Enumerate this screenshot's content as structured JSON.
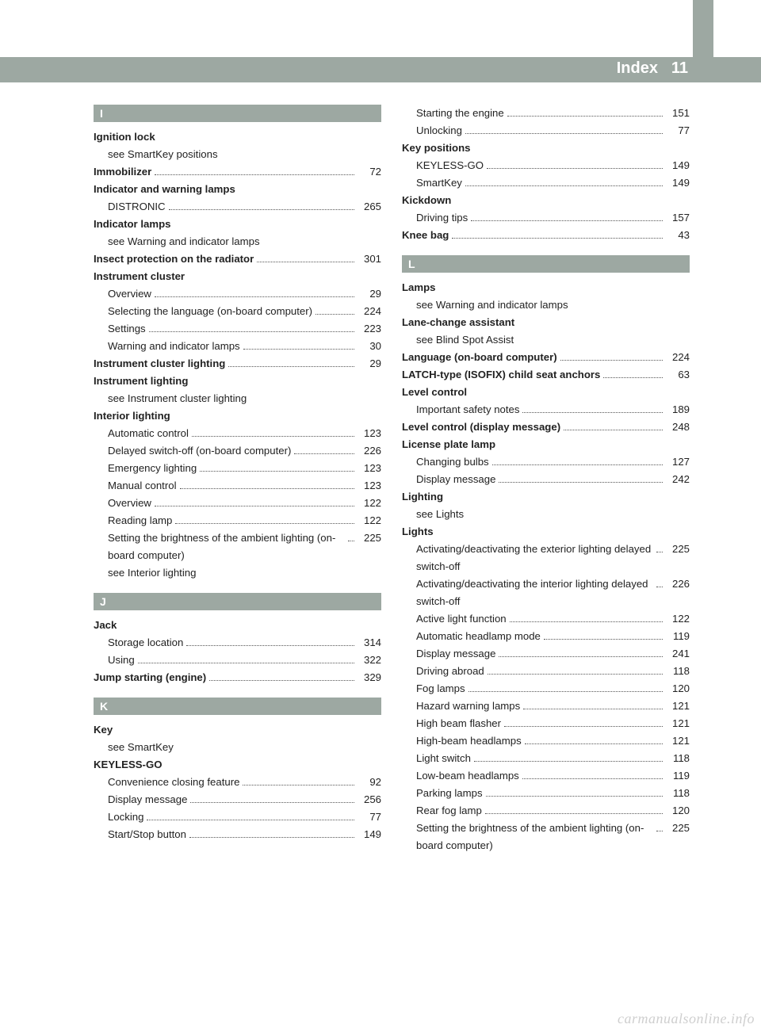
{
  "header": {
    "title": "Index",
    "page": "11"
  },
  "watermark": "carmanualsonline.info",
  "columns": [
    {
      "groups": [
        {
          "letter": "I",
          "items": [
            {
              "type": "head",
              "label": "Ignition lock"
            },
            {
              "type": "sub",
              "label": "see SmartKey positions"
            },
            {
              "type": "boldrow",
              "label": "Immobilizer",
              "page": "72"
            },
            {
              "type": "head",
              "label": "Indicator and warning lamps"
            },
            {
              "type": "subrow",
              "label": "DISTRONIC",
              "page": "265"
            },
            {
              "type": "head",
              "label": "Indicator lamps"
            },
            {
              "type": "sub",
              "label": "see Warning and indicator lamps"
            },
            {
              "type": "boldrow",
              "label": "Insect protection on the radiator",
              "page": "301"
            },
            {
              "type": "head",
              "label": "Instrument cluster"
            },
            {
              "type": "subrow",
              "label": "Overview",
              "page": "29"
            },
            {
              "type": "subrow",
              "label": "Selecting the language (on-board computer)",
              "page": "224"
            },
            {
              "type": "subrow",
              "label": "Settings",
              "page": "223"
            },
            {
              "type": "subrow",
              "label": "Warning and indicator lamps",
              "page": "30"
            },
            {
              "type": "boldrow",
              "label": "Instrument cluster lighting",
              "page": "29"
            },
            {
              "type": "head",
              "label": "Instrument lighting"
            },
            {
              "type": "sub",
              "label": "see Instrument cluster lighting"
            },
            {
              "type": "head",
              "label": "Interior lighting"
            },
            {
              "type": "subrow",
              "label": "Automatic control",
              "page": "123"
            },
            {
              "type": "subrow",
              "label": "Delayed switch-off (on-board computer)",
              "page": "226"
            },
            {
              "type": "subrow",
              "label": "Emergency lighting",
              "page": "123"
            },
            {
              "type": "subrow",
              "label": "Manual control",
              "page": "123"
            },
            {
              "type": "subrow",
              "label": "Overview",
              "page": "122"
            },
            {
              "type": "subrow",
              "label": "Reading lamp",
              "page": "122"
            },
            {
              "type": "subrow",
              "label": "Setting the brightness of the ambient lighting (on-board computer)",
              "page": "225"
            },
            {
              "type": "sub",
              "label": "see Interior lighting"
            }
          ]
        },
        {
          "letter": "J",
          "items": [
            {
              "type": "head",
              "label": "Jack"
            },
            {
              "type": "subrow",
              "label": "Storage location",
              "page": "314"
            },
            {
              "type": "subrow",
              "label": "Using",
              "page": "322"
            },
            {
              "type": "boldrow",
              "label": "Jump starting (engine)",
              "page": "329"
            }
          ]
        },
        {
          "letter": "K",
          "items": [
            {
              "type": "head",
              "label": "Key"
            },
            {
              "type": "sub",
              "label": "see SmartKey"
            },
            {
              "type": "head",
              "label": "KEYLESS-GO"
            },
            {
              "type": "subrow",
              "label": "Convenience closing feature",
              "page": "92"
            },
            {
              "type": "subrow",
              "label": "Display message",
              "page": "256"
            },
            {
              "type": "subrow",
              "label": "Locking",
              "page": "77"
            },
            {
              "type": "subrow",
              "label": "Start/Stop button",
              "page": "149"
            }
          ]
        }
      ]
    },
    {
      "groups": [
        {
          "letter": null,
          "items": [
            {
              "type": "subrow",
              "label": "Starting the engine",
              "page": "151"
            },
            {
              "type": "subrow",
              "label": "Unlocking",
              "page": "77"
            },
            {
              "type": "head",
              "label": "Key positions"
            },
            {
              "type": "subrow",
              "label": "KEYLESS-GO",
              "page": "149"
            },
            {
              "type": "subrow",
              "label": "SmartKey",
              "page": "149"
            },
            {
              "type": "head",
              "label": "Kickdown"
            },
            {
              "type": "subrow",
              "label": "Driving tips",
              "page": "157"
            },
            {
              "type": "boldrow",
              "label": "Knee bag",
              "page": "43"
            }
          ]
        },
        {
          "letter": "L",
          "items": [
            {
              "type": "head",
              "label": "Lamps"
            },
            {
              "type": "sub",
              "label": "see Warning and indicator lamps"
            },
            {
              "type": "head",
              "label": "Lane-change assistant"
            },
            {
              "type": "sub",
              "label": "see Blind Spot Assist"
            },
            {
              "type": "boldrow",
              "label": "Language (on-board computer)",
              "page": "224"
            },
            {
              "type": "boldrow",
              "label": "LATCH-type (ISOFIX) child seat anchors",
              "page": "63"
            },
            {
              "type": "head",
              "label": "Level control"
            },
            {
              "type": "subrow",
              "label": "Important safety notes",
              "page": "189"
            },
            {
              "type": "boldrow",
              "label": "Level control (display message)",
              "page": "248"
            },
            {
              "type": "head",
              "label": "License plate lamp"
            },
            {
              "type": "subrow",
              "label": "Changing bulbs",
              "page": "127"
            },
            {
              "type": "subrow",
              "label": "Display message",
              "page": "242"
            },
            {
              "type": "head",
              "label": "Lighting"
            },
            {
              "type": "sub",
              "label": "see Lights"
            },
            {
              "type": "head",
              "label": "Lights"
            },
            {
              "type": "subrow",
              "label": "Activating/deactivating the exterior lighting delayed switch-off",
              "page": "225"
            },
            {
              "type": "subrow",
              "label": "Activating/deactivating the interior lighting delayed switch-off",
              "page": "226"
            },
            {
              "type": "subrow",
              "label": "Active light function",
              "page": "122"
            },
            {
              "type": "subrow",
              "label": "Automatic headlamp mode",
              "page": "119"
            },
            {
              "type": "subrow",
              "label": "Display message",
              "page": "241"
            },
            {
              "type": "subrow",
              "label": "Driving abroad",
              "page": "118"
            },
            {
              "type": "subrow",
              "label": "Fog lamps",
              "page": "120"
            },
            {
              "type": "subrow",
              "label": "Hazard warning lamps",
              "page": "121"
            },
            {
              "type": "subrow",
              "label": "High beam flasher",
              "page": "121"
            },
            {
              "type": "subrow",
              "label": "High-beam headlamps",
              "page": "121"
            },
            {
              "type": "subrow",
              "label": "Light switch",
              "page": "118"
            },
            {
              "type": "subrow",
              "label": "Low-beam headlamps",
              "page": "119"
            },
            {
              "type": "subrow",
              "label": "Parking lamps",
              "page": "118"
            },
            {
              "type": "subrow",
              "label": "Rear fog lamp",
              "page": "120"
            },
            {
              "type": "subrow",
              "label": "Setting the brightness of the ambient lighting (on-board computer)",
              "page": "225"
            }
          ]
        }
      ]
    }
  ]
}
